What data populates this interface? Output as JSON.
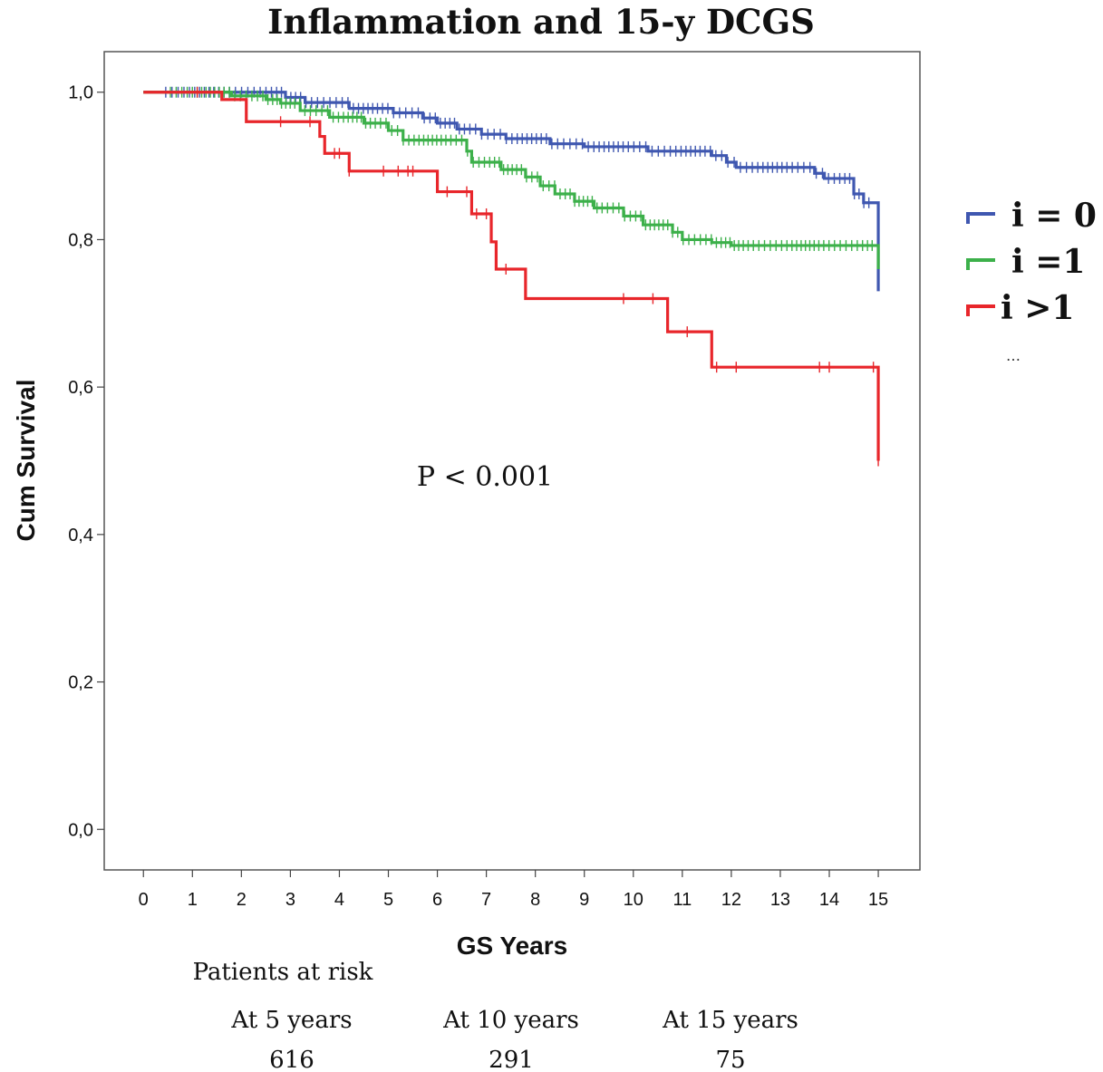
{
  "chart_data": {
    "type": "line",
    "title": "Inflammation and 15-y DCGS",
    "xlabel": "GS Years",
    "ylabel": "Cum Survival",
    "xlim": [
      -0.8,
      15.85
    ],
    "ylim": [
      -0.055,
      1.055
    ],
    "x_ticks": [
      "0",
      "1",
      "2",
      "3",
      "4",
      "5",
      "6",
      "7",
      "8",
      "9",
      "10",
      "11",
      "12",
      "13",
      "14",
      "15"
    ],
    "y_ticks": [
      "0,0",
      "0,2",
      "0,4",
      "0,6",
      "0,8",
      "1,0"
    ],
    "grid": false,
    "legend_position": "right",
    "annotation": "P < 0.001",
    "series": [
      {
        "name": "i = 0",
        "color": "#3f57b0",
        "steps": [
          [
            0,
            1.0
          ],
          [
            2.9,
            0.993
          ],
          [
            3.3,
            0.986
          ],
          [
            4.2,
            0.978
          ],
          [
            5.1,
            0.972
          ],
          [
            5.7,
            0.965
          ],
          [
            6.0,
            0.958
          ],
          [
            6.4,
            0.95
          ],
          [
            6.9,
            0.943
          ],
          [
            7.4,
            0.937
          ],
          [
            8.3,
            0.93
          ],
          [
            9.0,
            0.926
          ],
          [
            10.3,
            0.92
          ],
          [
            11.6,
            0.914
          ],
          [
            11.9,
            0.905
          ],
          [
            12.1,
            0.898
          ],
          [
            13.7,
            0.89
          ],
          [
            13.9,
            0.883
          ],
          [
            14.5,
            0.862
          ],
          [
            14.7,
            0.85
          ],
          [
            15.0,
            0.73
          ]
        ],
        "censor_ranges": [
          [
            0.4,
            14.9,
            130
          ]
        ]
      },
      {
        "name": "i =1",
        "color": "#3cb04a",
        "steps": [
          [
            0,
            1.0
          ],
          [
            1.8,
            0.995
          ],
          [
            2.5,
            0.99
          ],
          [
            2.8,
            0.985
          ],
          [
            3.2,
            0.975
          ],
          [
            3.8,
            0.966
          ],
          [
            4.5,
            0.958
          ],
          [
            5.0,
            0.948
          ],
          [
            5.3,
            0.935
          ],
          [
            6.6,
            0.92
          ],
          [
            6.7,
            0.905
          ],
          [
            7.3,
            0.895
          ],
          [
            7.8,
            0.885
          ],
          [
            8.1,
            0.873
          ],
          [
            8.4,
            0.862
          ],
          [
            8.8,
            0.852
          ],
          [
            9.2,
            0.843
          ],
          [
            9.8,
            0.832
          ],
          [
            10.2,
            0.82
          ],
          [
            10.8,
            0.81
          ],
          [
            11.0,
            0.8
          ],
          [
            11.6,
            0.796
          ],
          [
            12.0,
            0.792
          ],
          [
            15.0,
            0.76
          ]
        ],
        "censor_ranges": [
          [
            0.5,
            14.9,
            140
          ]
        ]
      },
      {
        "name": "i >1",
        "color": "#e8262b",
        "steps": [
          [
            0,
            1.0
          ],
          [
            1.6,
            0.99
          ],
          [
            2.1,
            0.96
          ],
          [
            2.9,
            0.96
          ],
          [
            3.6,
            0.94
          ],
          [
            3.7,
            0.917
          ],
          [
            4.2,
            0.893
          ],
          [
            6.0,
            0.865
          ],
          [
            6.7,
            0.835
          ],
          [
            7.1,
            0.797
          ],
          [
            7.2,
            0.76
          ],
          [
            7.8,
            0.72
          ],
          [
            10.7,
            0.675
          ],
          [
            11.6,
            0.627
          ],
          [
            15.0,
            0.5
          ]
        ],
        "censor_points": [
          1.1,
          2.8,
          3.4,
          3.9,
          4.0,
          4.2,
          4.9,
          5.2,
          5.4,
          5.5,
          6.2,
          6.6,
          6.8,
          7.0,
          7.4,
          9.8,
          10.4,
          11.1,
          11.7,
          12.1,
          13.8,
          14.0,
          14.9,
          15.0
        ]
      }
    ]
  },
  "legend_extra": "…",
  "risk_table": {
    "title": "Patients at risk",
    "columns": [
      {
        "label": "At 5 years",
        "value": "616"
      },
      {
        "label": "At 10 years",
        "value": "291"
      },
      {
        "label": "At 15 years",
        "value": "75"
      }
    ]
  }
}
